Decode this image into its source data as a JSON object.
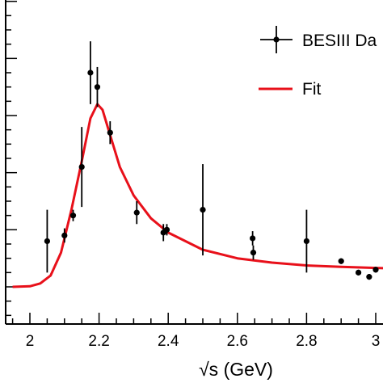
{
  "chart_data": {
    "type": "scatter",
    "title": "",
    "xlabel": "√s (GeV)",
    "ylabel": "",
    "xlim": [
      1.95,
      3.03
    ],
    "ylim": [
      -0.0,
      1.0
    ],
    "x_ticks": [
      {
        "value": 2.0,
        "label": "2"
      },
      {
        "value": 2.2,
        "label": "2.2"
      },
      {
        "value": 2.4,
        "label": "2.4"
      },
      {
        "value": 2.6,
        "label": "2.6"
      },
      {
        "value": 2.8,
        "label": "2.8"
      },
      {
        "value": 3.0,
        "label": "3"
      }
    ],
    "y_major_ticks": [
      0.0,
      0.2,
      0.4,
      0.6,
      0.8,
      1.0
    ],
    "legend": {
      "placement": "top-right",
      "entries": [
        {
          "label": "BESIII Da",
          "marker": "point-with-errorbars",
          "color": "#000000"
        },
        {
          "label": "Fit",
          "marker": "line",
          "color": "#e8101a"
        }
      ]
    },
    "series": [
      {
        "name": "BESIII Da",
        "kind": "points",
        "color": "#000000",
        "points": [
          {
            "x": 2.05,
            "y": 0.16,
            "err": 0.11
          },
          {
            "x": 2.1,
            "y": 0.18,
            "err": 0.025
          },
          {
            "x": 2.125,
            "y": 0.25,
            "err": 0.02
          },
          {
            "x": 2.15,
            "y": 0.42,
            "err": 0.14
          },
          {
            "x": 2.175,
            "y": 0.75,
            "err": 0.11
          },
          {
            "x": 2.195,
            "y": 0.7,
            "err": 0.07
          },
          {
            "x": 2.232,
            "y": 0.54,
            "err": 0.04
          },
          {
            "x": 2.309,
            "y": 0.26,
            "err": 0.04
          },
          {
            "x": 2.386,
            "y": 0.19,
            "err": 0.03
          },
          {
            "x": 2.396,
            "y": 0.2,
            "err": 0.02
          },
          {
            "x": 2.5,
            "y": 0.27,
            "err": 0.16
          },
          {
            "x": 2.644,
            "y": 0.17,
            "err": 0.025
          },
          {
            "x": 2.646,
            "y": 0.12,
            "err": 0.025
          },
          {
            "x": 2.8,
            "y": 0.16,
            "err": 0.11
          },
          {
            "x": 2.9,
            "y": 0.09,
            "err": 0.01
          },
          {
            "x": 2.95,
            "y": 0.05,
            "err": 0.01
          },
          {
            "x": 2.981,
            "y": 0.035,
            "err": 0.01
          },
          {
            "x": 3.0,
            "y": 0.06,
            "err": 0.01
          }
        ]
      },
      {
        "name": "Fit",
        "kind": "line",
        "color": "#e8101a",
        "points": [
          {
            "x": 1.95,
            "y": 0.0
          },
          {
            "x": 2.0,
            "y": 0.002
          },
          {
            "x": 2.03,
            "y": 0.012
          },
          {
            "x": 2.06,
            "y": 0.04
          },
          {
            "x": 2.09,
            "y": 0.12
          },
          {
            "x": 2.12,
            "y": 0.27
          },
          {
            "x": 2.15,
            "y": 0.44
          },
          {
            "x": 2.175,
            "y": 0.59
          },
          {
            "x": 2.195,
            "y": 0.64
          },
          {
            "x": 2.21,
            "y": 0.62
          },
          {
            "x": 2.23,
            "y": 0.54
          },
          {
            "x": 2.26,
            "y": 0.42
          },
          {
            "x": 2.3,
            "y": 0.32
          },
          {
            "x": 2.35,
            "y": 0.24
          },
          {
            "x": 2.4,
            "y": 0.19
          },
          {
            "x": 2.5,
            "y": 0.13
          },
          {
            "x": 2.6,
            "y": 0.1
          },
          {
            "x": 2.7,
            "y": 0.085
          },
          {
            "x": 2.8,
            "y": 0.075
          },
          {
            "x": 2.9,
            "y": 0.07
          },
          {
            "x": 3.03,
            "y": 0.065
          }
        ]
      }
    ]
  }
}
